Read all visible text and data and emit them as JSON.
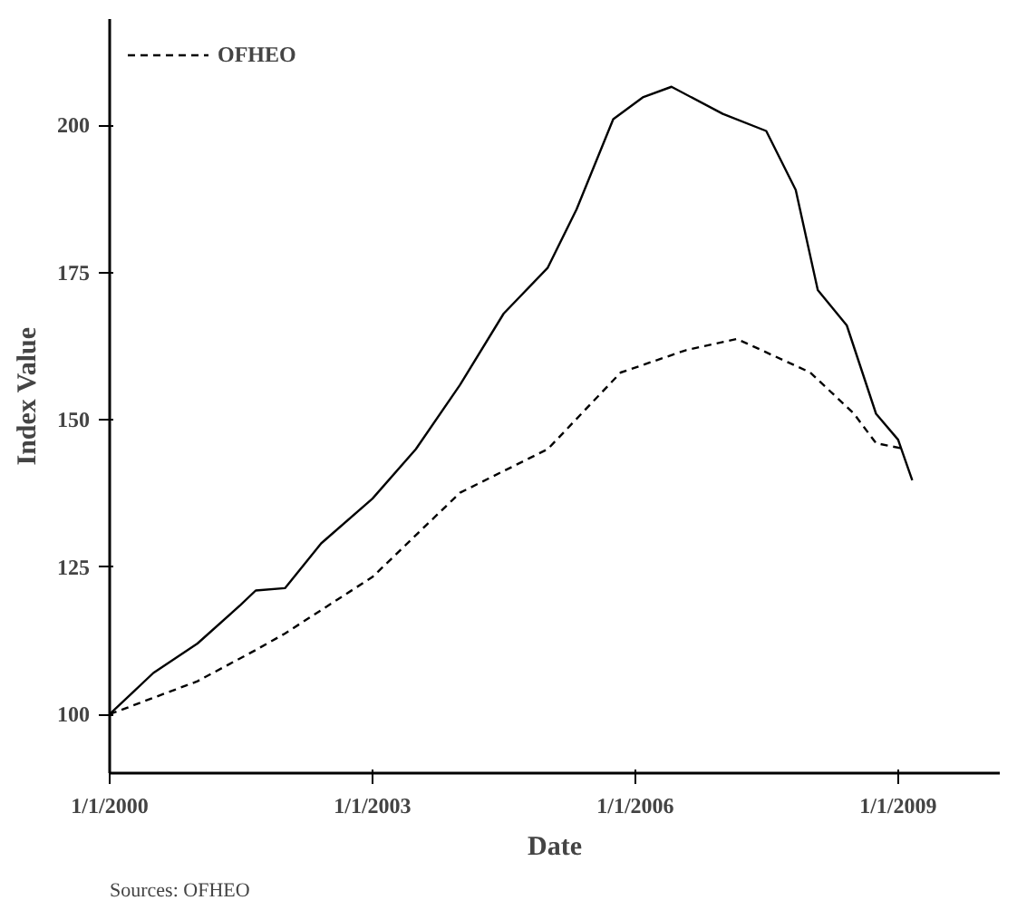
{
  "chart_data": {
    "type": "line",
    "xlabel": "Date",
    "ylabel": "Index Value",
    "annotations": [
      "Sources: OFHEO"
    ],
    "xlim": [
      "2000-01-01",
      "2010-03-01"
    ],
    "ylim": [
      90,
      218
    ],
    "xticks": [
      {
        "value": "2000-01-01",
        "label": "1/1/2000"
      },
      {
        "value": "2003-01-01",
        "label": "1/1/2003"
      },
      {
        "value": "2006-01-01",
        "label": "1/1/2006"
      },
      {
        "value": "2009-01-01",
        "label": "1/1/2009"
      }
    ],
    "yticks": [
      100,
      125,
      150,
      175,
      200
    ],
    "grid": false,
    "legend": "top left",
    "marker": "none",
    "series": [
      {
        "color": "#000000",
        "line_style": "solid",
        "x": [
          "2000-01",
          "2000-07",
          "2001-01",
          "2001-07",
          "2001-09",
          "2002-01",
          "2002-06",
          "2003-01",
          "2003-07",
          "2004-01",
          "2004-07",
          "2005-01",
          "2005-05",
          "2005-10",
          "2006-02",
          "2006-06",
          "2007-01",
          "2007-07",
          "2007-11",
          "2008-02",
          "2008-06",
          "2008-10",
          "2009-01",
          "2009-03"
        ],
        "values": [
          100,
          107,
          112,
          118.6,
          121,
          121.4,
          129,
          136.6,
          145,
          155.9,
          168,
          175.8,
          185.7,
          201,
          204.7,
          206.5,
          201.9,
          199,
          189,
          172,
          166,
          151,
          146.6,
          139.7
        ]
      },
      {
        "name": "OFHEO",
        "color": "#000000",
        "line_style": "dashed",
        "x": [
          "2000-01",
          "2001-01",
          "2001-09",
          "2002-01",
          "2003-01",
          "2004-01",
          "2005-01",
          "2005-11",
          "2006-08",
          "2007-03",
          "2008-01",
          "2008-07",
          "2008-10",
          "2009-02"
        ],
        "values": [
          100,
          105.6,
          110.9,
          113.7,
          123.3,
          137.6,
          145,
          158,
          161.8,
          163.7,
          158,
          151,
          146,
          145
        ]
      }
    ]
  }
}
